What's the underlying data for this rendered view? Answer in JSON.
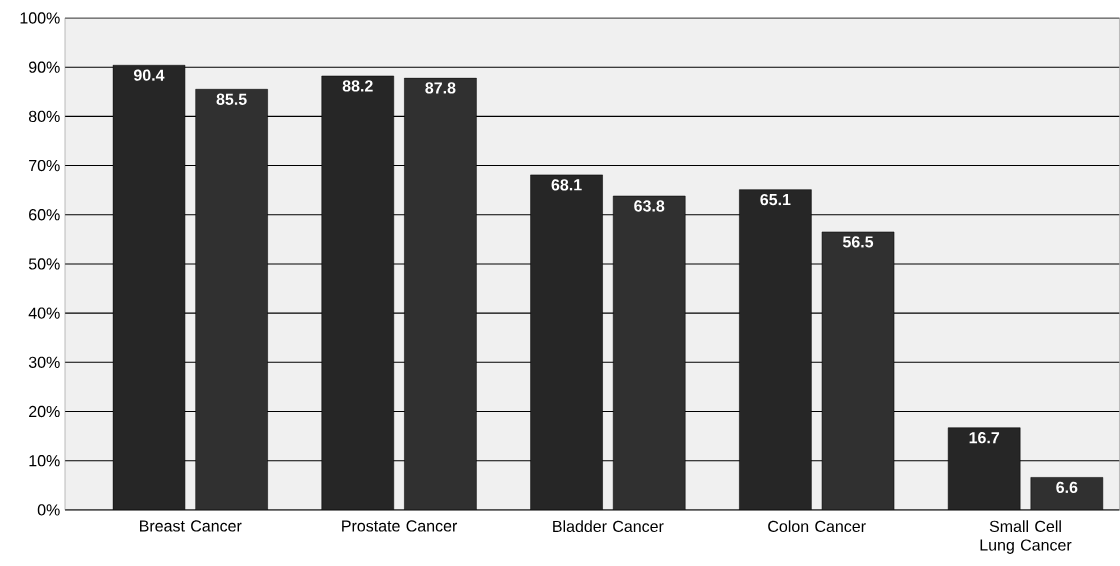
{
  "chart_data": {
    "type": "bar",
    "categories": [
      "Breast Cancer",
      "Prostate Cancer",
      "Bladder Cancer",
      "Colon Cancer",
      "Small Cell Lung Cancer"
    ],
    "series": [
      {
        "color": "#262626",
        "values": [
          90.4,
          88.2,
          68.1,
          65.1,
          16.7
        ]
      },
      {
        "color": "#303030",
        "values": [
          85.5,
          87.8,
          63.8,
          56.5,
          6.6
        ]
      }
    ],
    "ylim": [
      0,
      100
    ],
    "yticks": [
      {
        "value": 0,
        "label": "0%"
      },
      {
        "value": 10,
        "label": "10%"
      },
      {
        "value": 20,
        "label": "20%"
      },
      {
        "value": 30,
        "label": "30%"
      },
      {
        "value": 40,
        "label": "40%"
      },
      {
        "value": 50,
        "label": "50%"
      },
      {
        "value": 60,
        "label": "60%"
      },
      {
        "value": 70,
        "label": "70%"
      },
      {
        "value": 80,
        "label": "80%"
      },
      {
        "value": 90,
        "label": "90%"
      },
      {
        "value": 100,
        "label": "100%"
      }
    ],
    "grid": "y",
    "data_labels": true
  }
}
